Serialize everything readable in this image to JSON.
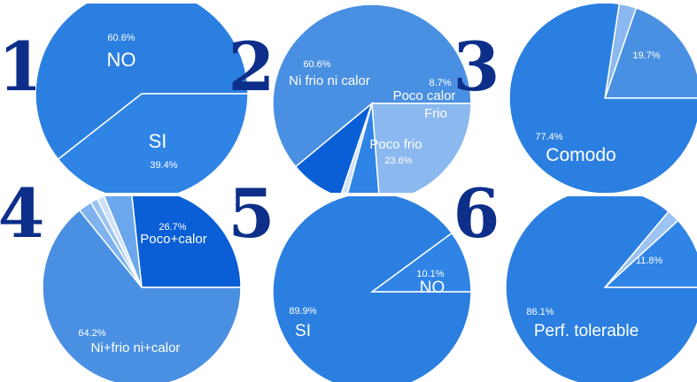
{
  "chart_data": [
    {
      "type": "pie",
      "number": "1",
      "slices": [
        {
          "label": "NO",
          "value": 60.6,
          "pct_text": "60.6%",
          "color": "#2b7fe0"
        },
        {
          "label": "SI",
          "value": 39.4,
          "pct_text": "39.4%",
          "color": "#2f84e6"
        }
      ]
    },
    {
      "type": "pie",
      "number": "2",
      "slices": [
        {
          "label": "Ni frio ni calor",
          "value": 60.6,
          "pct_text": "60.6%",
          "color": "#4a90e2"
        },
        {
          "label": "Poco calor",
          "value": 8.7,
          "pct_text": "8.7%",
          "color": "#0a5fd6"
        },
        {
          "label": "",
          "value": 1.0,
          "pct_text": "",
          "color": "#cfe2fb"
        },
        {
          "label": "Frio",
          "value": 5.4,
          "pct_text": "",
          "color": "#2f84e6"
        },
        {
          "label": "Poco frio",
          "value": 23.6,
          "pct_text": "23.6%",
          "color": "#8bb8ef"
        }
      ]
    },
    {
      "type": "pie",
      "number": "3",
      "slices": [
        {
          "label": "",
          "value": 19.7,
          "pct_text": "19.7%",
          "color": "#4a90e2"
        },
        {
          "label": "",
          "value": 2.9,
          "pct_text": "",
          "color": "#8bb8ef"
        },
        {
          "label": "Comodo",
          "value": 77.4,
          "pct_text": "77.4%",
          "color": "#2b7fe0"
        }
      ]
    },
    {
      "type": "pie",
      "number": "4",
      "slices": [
        {
          "label": "Poco+calor",
          "value": 26.7,
          "pct_text": "26.7%",
          "color": "#0a5fd6"
        },
        {
          "label": "",
          "value": 4.5,
          "pct_text": "",
          "color": "#6aa7ec"
        },
        {
          "label": "",
          "value": 1.2,
          "pct_text": "",
          "color": "#cfe2fb"
        },
        {
          "label": "",
          "value": 1.2,
          "pct_text": "",
          "color": "#9cc3f2"
        },
        {
          "label": "",
          "value": 2.2,
          "pct_text": "",
          "color": "#7fb2ee"
        },
        {
          "label": "Ni+frio ni+calor",
          "value": 64.2,
          "pct_text": "64.2%",
          "color": "#4a90e2"
        }
      ]
    },
    {
      "type": "pie",
      "number": "5",
      "slices": [
        {
          "label": "NO",
          "value": 10.1,
          "pct_text": "10.1%",
          "color": "#2f84e6"
        },
        {
          "label": "SI",
          "value": 89.9,
          "pct_text": "89.9%",
          "color": "#2b7fe0"
        }
      ]
    },
    {
      "type": "pie",
      "number": "6",
      "slices": [
        {
          "label": "",
          "value": 11.8,
          "pct_text": "11.8%",
          "color": "#2f84e6"
        },
        {
          "label": "",
          "value": 2.1,
          "pct_text": "",
          "color": "#9cc3f2"
        },
        {
          "label": "Perf. tolerable",
          "value": 86.1,
          "pct_text": "86.1%",
          "color": "#2b7fe0"
        }
      ]
    }
  ]
}
